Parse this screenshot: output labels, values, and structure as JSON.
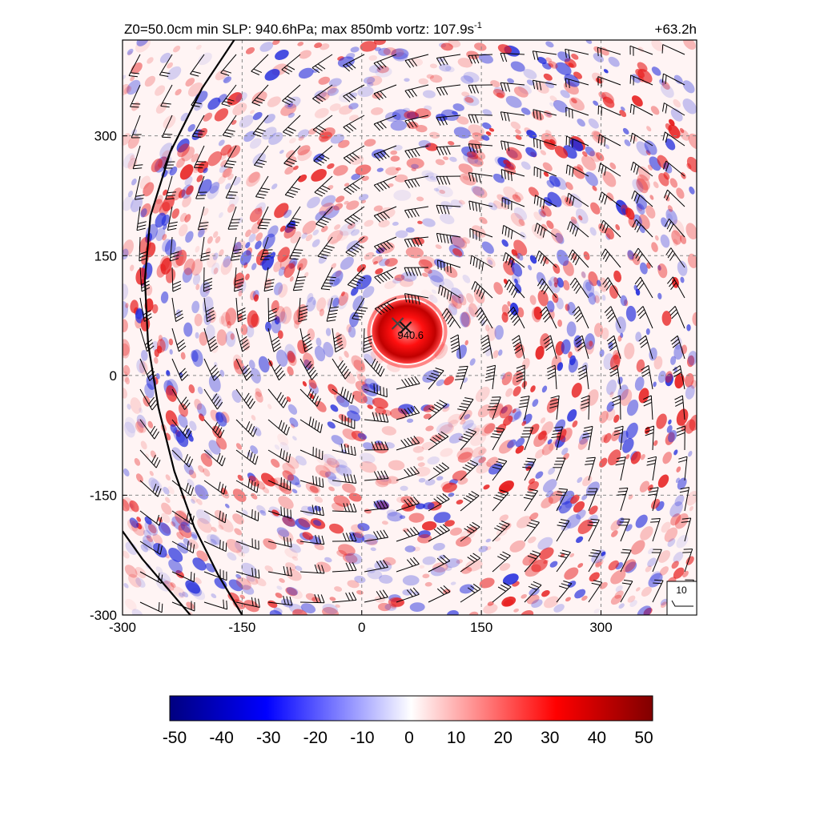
{
  "header": {
    "title_prefix": "Z0=50.0cm  min SLP: 940.6hPa; max 850mb vortz: 107.9s",
    "title_exponent": "-1",
    "forecast_hour": "+63.2h"
  },
  "center_label": "940.6",
  "wind_key_label": "10",
  "chart_data": {
    "type": "heatmap",
    "title": "Z0=50.0cm  min SLP: 940.6hPa; max 850mb vortz: 107.9s-1",
    "xlabel": "",
    "ylabel": "",
    "xlim": [
      -300,
      420
    ],
    "ylim": [
      -300,
      420
    ],
    "x_ticks": [
      -300,
      -150,
      0,
      150,
      300
    ],
    "y_ticks": [
      -300,
      -150,
      0,
      150,
      300
    ],
    "x_tick_labels": [
      "-300",
      "-150",
      "0",
      "150",
      "300"
    ],
    "y_tick_labels": [
      "-300",
      "-150",
      "0",
      "150",
      "300"
    ],
    "grid": true,
    "storm_center": [
      55,
      60
    ],
    "secondary_center": [
      45,
      65
    ],
    "min_slp": "940.6",
    "colorbar": {
      "min": -50,
      "max": 50,
      "ticks": [
        -50,
        -40,
        -30,
        -20,
        -10,
        0,
        10,
        20,
        30,
        40,
        50
      ],
      "tick_labels": [
        "-50",
        "-40",
        "-30",
        "-20",
        "-10",
        "0",
        "10",
        "20",
        "30",
        "40",
        "50"
      ],
      "colors": {
        "low": "#000080",
        "mid_low": "#0000ff",
        "zero": "#ffffff",
        "mid_high": "#ff0000",
        "high": "#800000"
      }
    },
    "contour_lines": [
      {
        "points": [
          [
            -160,
            420
          ],
          [
            -200,
            360
          ],
          [
            -240,
            280
          ],
          [
            -265,
            200
          ],
          [
            -272,
            120
          ],
          [
            -268,
            40
          ],
          [
            -255,
            -40
          ],
          [
            -235,
            -120
          ],
          [
            -210,
            -190
          ],
          [
            -180,
            -250
          ],
          [
            -150,
            -300
          ]
        ]
      },
      {
        "points": [
          [
            -300,
            -195
          ],
          [
            -275,
            -230
          ],
          [
            -245,
            -265
          ],
          [
            -215,
            -300
          ]
        ]
      }
    ],
    "wind_barbs": {
      "grid_spacing": 40,
      "center": [
        50,
        40
      ],
      "key_speed": 10
    }
  }
}
